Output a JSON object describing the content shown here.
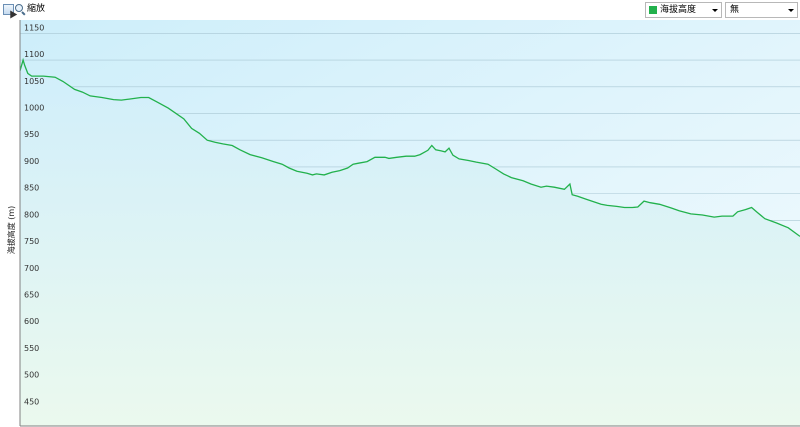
{
  "toolbar": {
    "select_icon": "pointer-select-icon",
    "zoom_icon": "magnifier-icon",
    "zoom_label": "縮放",
    "series_dropdown": {
      "selected": "海拔高度",
      "swatch_color": "#22b14c"
    },
    "compare_dropdown": {
      "selected": "無"
    }
  },
  "chart_data": {
    "type": "area",
    "title": "",
    "xlabel": "",
    "ylabel": "海拔高度 (m)",
    "ylim": [
      415,
      1175
    ],
    "yticks": [
      450,
      500,
      550,
      600,
      650,
      700,
      750,
      800,
      850,
      900,
      950,
      1000,
      1050,
      1100,
      1150
    ],
    "xlim": [
      0,
      100
    ],
    "grid": true,
    "legend": "none",
    "colors": {
      "line": "#22b14c",
      "fill_top": "#d0eefb",
      "fill_bottom": "#ebf9ee",
      "bg_top": "#cdeefa",
      "bg_bottom": "#f4fbfe"
    },
    "series": [
      {
        "values": [
          [
            0.0,
            1080
          ],
          [
            0.4,
            1100
          ],
          [
            0.6,
            1090
          ],
          [
            1.0,
            1075
          ],
          [
            1.5,
            1070
          ],
          [
            3,
            1070
          ],
          [
            4.5,
            1068
          ],
          [
            5.5,
            1060
          ],
          [
            7,
            1045
          ],
          [
            8,
            1040
          ],
          [
            9,
            1033
          ],
          [
            10.5,
            1030
          ],
          [
            12,
            1026
          ],
          [
            13,
            1025
          ],
          [
            14,
            1027
          ],
          [
            15.5,
            1030
          ],
          [
            16.5,
            1030
          ],
          [
            17.5,
            1022
          ],
          [
            19,
            1010
          ],
          [
            21,
            990
          ],
          [
            22,
            972
          ],
          [
            23,
            963
          ],
          [
            24,
            950
          ],
          [
            25,
            946
          ],
          [
            26,
            943
          ],
          [
            27.2,
            940
          ],
          [
            28.2,
            932
          ],
          [
            29.5,
            923
          ],
          [
            31,
            917
          ],
          [
            32.5,
            910
          ],
          [
            33.6,
            905
          ],
          [
            34.5,
            898
          ],
          [
            35.5,
            892
          ],
          [
            36.8,
            888
          ],
          [
            37.5,
            885
          ],
          [
            38,
            887
          ],
          [
            39,
            885
          ],
          [
            40,
            890
          ],
          [
            41,
            893
          ],
          [
            42,
            898
          ],
          [
            42.7,
            905
          ],
          [
            43.4,
            907
          ],
          [
            44.5,
            910
          ],
          [
            45.5,
            918
          ],
          [
            46.8,
            918
          ],
          [
            47.3,
            916
          ],
          [
            48.3,
            918
          ],
          [
            49.5,
            920
          ],
          [
            50.6,
            920
          ],
          [
            51.3,
            923
          ],
          [
            52.3,
            931
          ],
          [
            52.8,
            940
          ],
          [
            53.3,
            932
          ],
          [
            54,
            930
          ],
          [
            54.5,
            928
          ],
          [
            55,
            935
          ],
          [
            55.5,
            922
          ],
          [
            56.3,
            915
          ],
          [
            57.5,
            912
          ],
          [
            58.5,
            909
          ],
          [
            60,
            905
          ],
          [
            61,
            896
          ],
          [
            62,
            887
          ],
          [
            63,
            880
          ],
          [
            64.5,
            874
          ],
          [
            65.5,
            868
          ],
          [
            66.8,
            862
          ],
          [
            67.5,
            864
          ],
          [
            68.5,
            862
          ],
          [
            69.8,
            858
          ],
          [
            70.5,
            868
          ],
          [
            70.8,
            848
          ],
          [
            71.5,
            845
          ],
          [
            72.5,
            840
          ],
          [
            73.5,
            835
          ],
          [
            74.5,
            830
          ],
          [
            75.3,
            828
          ],
          [
            76.5,
            826
          ],
          [
            77.5,
            824
          ],
          [
            78.5,
            824
          ],
          [
            79.2,
            825
          ],
          [
            80,
            836
          ],
          [
            80.8,
            833
          ],
          [
            82,
            830
          ],
          [
            83.5,
            823
          ],
          [
            84.5,
            818
          ],
          [
            86,
            812
          ],
          [
            87.5,
            810
          ],
          [
            89,
            806
          ],
          [
            90,
            808
          ],
          [
            91.4,
            808
          ],
          [
            92,
            816
          ],
          [
            93,
            820
          ],
          [
            93.8,
            824
          ],
          [
            94.5,
            815
          ],
          [
            95.5,
            803
          ],
          [
            97,
            795
          ],
          [
            98.5,
            786
          ],
          [
            100,
            770
          ]
        ]
      }
    ]
  }
}
